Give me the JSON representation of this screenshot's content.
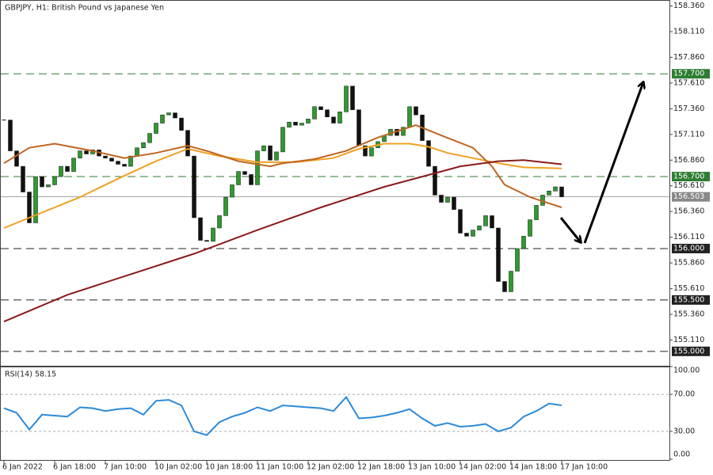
{
  "chart_data": [
    {
      "type": "candlestick",
      "title": "GBPJPY, H1:  British Pound vs Japanese Yen",
      "close": [
        157.25,
        156.95,
        156.8,
        156.55,
        156.25,
        156.7,
        156.6,
        156.62,
        156.7,
        156.8,
        156.75,
        156.88,
        156.95,
        156.92,
        156.96,
        156.9,
        156.88,
        156.85,
        156.82,
        156.8,
        156.9,
        156.98,
        157.03,
        157.12,
        157.22,
        157.3,
        157.32,
        157.27,
        157.15,
        156.9,
        156.3,
        156.08,
        156.07,
        156.2,
        156.32,
        156.5,
        156.62,
        156.75,
        156.72,
        156.62,
        156.95,
        157.0,
        156.86,
        156.94,
        157.18,
        157.23,
        157.2,
        157.22,
        157.26,
        157.38,
        157.35,
        157.28,
        157.22,
        157.33,
        157.58,
        157.35,
        157.0,
        156.9,
        156.98,
        157.04,
        157.1,
        157.16,
        157.1,
        157.18,
        157.38,
        157.3,
        157.05,
        156.8,
        156.52,
        156.45,
        156.5,
        156.38,
        156.15,
        156.12,
        156.18,
        156.22,
        156.32,
        156.2,
        155.68,
        155.58,
        155.78,
        156.0,
        156.12,
        156.28,
        156.42,
        156.52,
        156.56,
        156.6,
        156.503
      ],
      "up_color": "#2e9a2e",
      "down_color": "#111111",
      "series": [
        {
          "color": "#f0a020",
          "x": [
            0,
            6,
            12,
            18,
            24,
            29,
            34,
            40,
            46,
            52,
            56,
            60,
            64,
            67,
            70,
            74,
            78,
            82,
            88
          ],
          "values": [
            156.2,
            156.35,
            156.5,
            156.68,
            156.85,
            156.97,
            156.9,
            156.84,
            156.84,
            156.88,
            156.97,
            157.02,
            157.02,
            156.99,
            156.93,
            156.88,
            156.83,
            156.79,
            156.78
          ]
        },
        {
          "color": "#c0641e",
          "x": [
            0,
            4,
            8,
            14,
            19,
            24,
            29,
            32,
            37,
            42,
            44,
            49,
            54,
            59,
            65,
            69,
            74,
            77,
            79,
            83,
            88
          ],
          "values": [
            156.83,
            156.98,
            157.02,
            156.95,
            156.88,
            156.93,
            157.0,
            156.95,
            156.85,
            156.8,
            156.83,
            156.87,
            156.95,
            157.08,
            157.2,
            157.1,
            156.98,
            156.8,
            156.62,
            156.5,
            156.4
          ]
        },
        {
          "color": "#8b1a1a",
          "x": [
            0,
            10,
            20,
            30,
            40,
            50,
            60,
            66,
            72,
            78,
            82,
            88
          ],
          "values": [
            155.29,
            155.55,
            155.75,
            155.95,
            156.18,
            156.4,
            156.6,
            156.7,
            156.8,
            156.85,
            156.86,
            156.82
          ]
        }
      ],
      "levels": [
        {
          "value": 157.7,
          "label": "157.700",
          "color": "#2e7d32"
        },
        {
          "value": 156.7,
          "label": "156.700",
          "color": "#2e7d32"
        },
        {
          "value": 156.0,
          "label": "156.000",
          "color": "#222222"
        },
        {
          "value": 155.5,
          "label": "155.500",
          "color": "#222222"
        },
        {
          "value": 155.0,
          "label": "155.000",
          "color": "#222222"
        }
      ],
      "current": {
        "value": 156.503,
        "label": "156.503",
        "color": "#888888"
      },
      "xlim": [
        0,
        105
      ],
      "xticks": [
        {
          "value": 0,
          "label": "6 Jan 2022"
        },
        {
          "value": 8,
          "label": "6 Jan 18:00"
        },
        {
          "value": 16,
          "label": "7 Jan 10:00"
        },
        {
          "value": 24,
          "label": "10 Jan 02:00"
        },
        {
          "value": 32,
          "label": "10 Jan 18:00"
        },
        {
          "value": 40,
          "label": "11 Jan 10:00"
        },
        {
          "value": 48,
          "label": "12 Jan 02:00"
        },
        {
          "value": 56,
          "label": "12 Jan 18:00"
        },
        {
          "value": 64,
          "label": "13 Jan 10:00"
        },
        {
          "value": 72,
          "label": "14 Jan 02:00"
        },
        {
          "value": 80,
          "label": "14 Jan 18:00"
        },
        {
          "value": 88,
          "label": "17 Jan 10:00"
        }
      ],
      "ylim": [
        154.86,
        158.41
      ],
      "yticks": [
        {
          "value": 158.36,
          "label": "158.360"
        },
        {
          "value": 158.11,
          "label": "158.110"
        },
        {
          "value": 157.86,
          "label": "157.860"
        },
        {
          "value": 157.61,
          "label": "157.610"
        },
        {
          "value": 157.36,
          "label": "157.360"
        },
        {
          "value": 157.11,
          "label": "157.110"
        },
        {
          "value": 156.86,
          "label": "156.860"
        },
        {
          "value": 156.61,
          "label": "156.610"
        },
        {
          "value": 156.36,
          "label": "156.360"
        },
        {
          "value": 156.11,
          "label": "156.110"
        },
        {
          "value": 155.86,
          "label": "155.860"
        },
        {
          "value": 155.61,
          "label": "155.610"
        },
        {
          "value": 155.36,
          "label": "155.360"
        },
        {
          "value": 155.11,
          "label": "155.110"
        }
      ]
    },
    {
      "type": "line",
      "title": "RSI(14) 58.15",
      "color": "#2b8ad8",
      "x": [
        0,
        2,
        4,
        6,
        8,
        10,
        12,
        14,
        16,
        18,
        20,
        22,
        24,
        26,
        28,
        30,
        32,
        34,
        36,
        38,
        40,
        42,
        44,
        46,
        48,
        50,
        52,
        54,
        56,
        58,
        60,
        62,
        64,
        66,
        68,
        70,
        72,
        74,
        76,
        78,
        80,
        82,
        84,
        86,
        88
      ],
      "values": [
        55,
        50,
        32,
        48,
        47,
        46,
        56,
        55,
        52,
        54,
        55,
        48,
        63,
        64,
        58,
        30,
        26,
        40,
        46,
        50,
        56,
        52,
        58,
        57,
        56,
        55,
        52,
        67,
        44,
        45,
        47,
        50,
        54,
        44,
        36,
        39,
        35,
        36,
        38,
        30,
        34,
        46,
        52,
        60,
        58.15
      ],
      "xlim": [
        0,
        105
      ],
      "ylim": [
        0,
        100
      ],
      "yticks": [
        {
          "value": 100,
          "label": "100.00"
        },
        {
          "value": 70,
          "label": "70.00"
        },
        {
          "value": 30,
          "label": "30.00"
        },
        {
          "value": 0,
          "label": "0.00"
        }
      ],
      "grid_values": [
        70,
        30
      ]
    }
  ]
}
